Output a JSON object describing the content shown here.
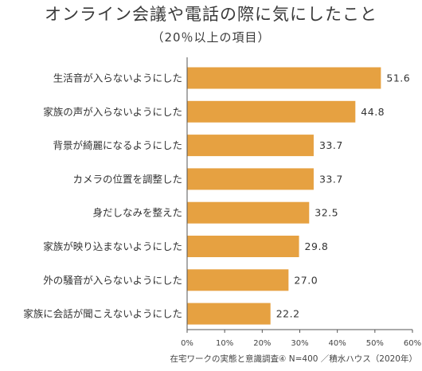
{
  "title": "オンライン会議や電話の際に気にしたこと",
  "subtitle": "（20％以上の項目）",
  "footnote": "在宅ワークの実態と意識調査④ N=400 ／積水ハウス（2020年）",
  "colors": {
    "bar": "#e6a141",
    "axis": "#555555",
    "grid": "#bbbbbb"
  },
  "chart_data": {
    "type": "bar",
    "orientation": "horizontal",
    "title": "オンライン会議や電話の際に気にしたこと",
    "subtitle": "（20％以上の項目）",
    "categories": [
      "生活音が入らないようにした",
      "家族の声が入らないようにした",
      "背景が綺麗になるようにした",
      "カメラの位置を調整した",
      "身だしなみを整えた",
      "家族が映り込まないようにした",
      "外の騒音が入らないようにした",
      "家族に会話が聞こえないようにした"
    ],
    "values": [
      51.6,
      44.8,
      33.7,
      33.7,
      32.5,
      29.8,
      27.0,
      22.2
    ],
    "value_labels": [
      "51.6",
      "44.8",
      "33.7",
      "33.7",
      "32.5",
      "29.8",
      "27.0",
      "22.2"
    ],
    "xlim": [
      0,
      60
    ],
    "xticks": [
      0,
      10,
      20,
      30,
      40,
      50,
      60
    ],
    "xtick_labels": [
      "0%",
      "10%",
      "20%",
      "30%",
      "40%",
      "50%",
      "60%"
    ],
    "grid": false,
    "legend": "none"
  }
}
